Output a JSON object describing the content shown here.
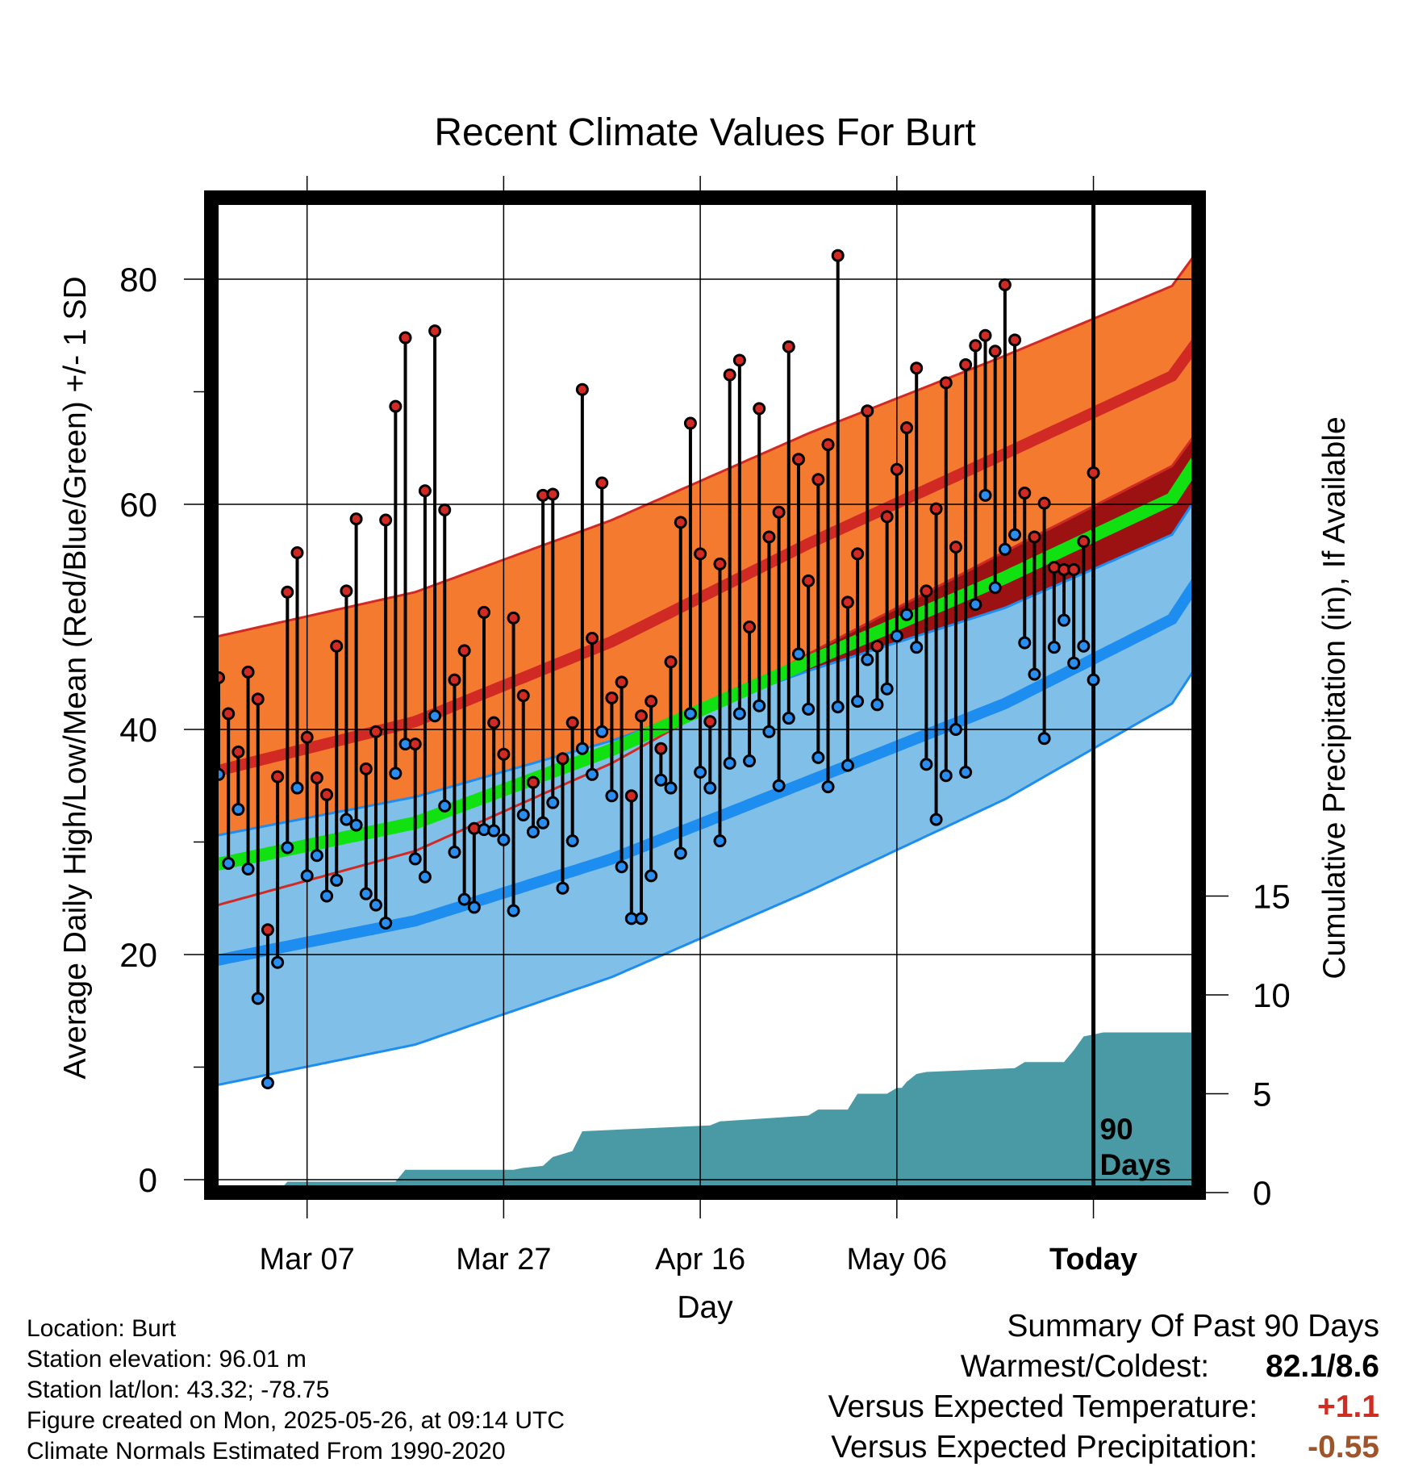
{
  "chart_data": {
    "type": "line",
    "title": "Recent Climate Values For Burt",
    "xlabel": "Day",
    "ylabel": "Average Daily High/Low/Mean (Red/Blue/Green) +/- 1 SD",
    "y2label": "Cumulative Precipitation (in), If Available",
    "x_tick_labels": [
      "Mar 07",
      "Mar 27",
      "Apr 16",
      "May 06",
      "Today"
    ],
    "y_ticks": [
      0,
      20,
      40,
      60,
      80
    ],
    "y2_ticks": [
      0,
      5,
      10,
      15
    ],
    "ylim": [
      -1,
      87
    ],
    "y2lim": [
      0,
      45
    ],
    "grid": true,
    "marker_label": "90 Days",
    "colors": {
      "high_band": "#f47a30",
      "high_line": "#d12a25",
      "low_band": "#80bfe8",
      "low_line": "#1e8df0",
      "mean_line": "#11e011",
      "precip": "#4a9aa5",
      "dark_red": "#9c1212"
    },
    "normals": {
      "x_day": [
        -3,
        20,
        40,
        60,
        80,
        97,
        100
      ],
      "high_mean": [
        35.7,
        40.7,
        47.8,
        56.5,
        64.5,
        71.4,
        75.0
      ],
      "high_sd": [
        12.0,
        11.5,
        10.8,
        9.8,
        8.7,
        8.0,
        8.0
      ],
      "low_mean": [
        19.0,
        23.0,
        28.5,
        35.4,
        42.3,
        49.8,
        53.8
      ],
      "low_sd": [
        11.1,
        11.0,
        10.5,
        9.8,
        8.5,
        7.5,
        7.5
      ],
      "mean_line": [
        27.5,
        31.7,
        38.2,
        46.0,
        53.5,
        60.5,
        64.5
      ]
    },
    "series": [
      {
        "name": "High",
        "values": [
          44.6,
          41.4,
          38.0,
          45.1,
          42.7,
          22.2,
          35.8,
          52.2,
          55.7,
          39.3,
          35.7,
          34.2,
          47.4,
          52.3,
          58.7,
          36.5,
          39.8,
          58.6,
          68.7,
          74.8,
          38.7,
          61.2,
          75.4,
          59.5,
          44.4,
          47.0,
          31.2,
          50.4,
          40.6,
          37.8,
          49.9,
          43.0,
          35.3,
          60.8,
          60.9,
          37.4,
          40.6,
          70.2,
          48.1,
          61.9,
          42.8,
          44.2,
          34.1,
          41.2,
          42.5,
          38.3,
          46.0,
          58.4,
          67.2,
          55.6,
          40.7,
          54.7,
          71.5,
          72.8,
          49.1,
          68.5,
          57.1,
          59.3,
          74.0,
          64.0,
          53.2,
          62.2,
          65.3,
          82.1,
          51.3,
          55.6,
          68.3,
          47.4,
          58.9,
          63.1,
          66.8,
          72.1,
          52.3,
          59.6,
          70.8,
          56.2,
          72.4,
          74.1,
          75.0,
          73.6,
          79.5,
          74.6,
          61.0,
          57.1,
          60.1,
          54.4,
          54.2,
          54.2,
          56.7,
          62.8
        ],
        "lows": [
          36.0,
          28.1,
          32.9,
          27.6,
          16.1,
          8.6,
          19.3,
          29.5,
          34.8,
          27.0,
          28.8,
          25.2,
          26.6,
          32.0,
          31.5,
          25.4,
          24.4,
          22.8,
          36.1,
          38.7,
          28.5,
          26.9,
          41.2,
          33.2,
          29.1,
          24.9,
          24.2,
          31.1,
          31.0,
          30.2,
          23.9,
          32.4,
          30.9,
          31.7,
          33.5,
          25.9,
          30.1,
          38.3,
          36.0,
          39.8,
          34.1,
          27.8,
          23.2,
          23.2,
          27.0,
          35.5,
          34.8,
          29.0,
          41.4,
          36.2,
          34.8,
          30.1,
          37.0,
          41.4,
          37.2,
          42.1,
          39.8,
          35.0,
          41.0,
          46.7,
          41.8,
          37.5,
          34.9,
          42.0,
          36.8,
          42.5,
          46.2,
          42.2,
          43.6,
          48.3,
          50.2,
          47.3,
          36.9,
          32.0,
          35.9,
          40.0,
          36.2,
          51.1,
          60.8,
          52.6,
          56.0,
          57.3,
          47.7,
          44.9,
          39.2,
          47.3,
          49.7,
          45.9,
          47.4,
          44.4
        ]
      },
      {
        "name": "Low",
        "values": [
          36.0,
          28.1,
          32.9,
          27.6,
          16.1,
          8.6,
          19.3,
          29.5,
          34.8,
          27.0,
          28.8,
          25.2,
          26.6,
          32.0,
          31.5,
          25.4,
          24.4,
          22.8,
          36.1,
          38.7,
          28.5,
          26.9,
          41.2,
          33.2,
          29.1,
          24.9,
          24.2,
          31.1,
          31.0,
          30.2,
          23.9,
          32.4,
          30.9,
          31.7,
          33.5,
          25.9,
          30.1,
          38.3,
          36.0,
          39.8,
          34.1,
          27.8,
          23.2,
          23.2,
          27.0,
          35.5,
          34.8,
          29.0,
          41.4,
          36.2,
          34.8,
          30.1,
          37.0,
          41.4,
          37.2,
          42.1,
          39.8,
          35.0,
          41.0,
          46.7,
          41.8,
          37.5,
          34.9,
          42.0,
          36.8,
          42.5,
          46.2,
          42.2,
          43.6,
          48.3,
          50.2,
          47.3,
          36.9,
          32.0,
          35.9,
          40.0,
          36.2,
          51.1,
          60.8,
          52.6,
          56.0,
          57.3,
          47.7,
          44.9,
          39.2,
          47.3,
          49.7,
          45.9,
          47.4,
          44.4
        ]
      },
      {
        "name": "Cumulative Precipitation",
        "x_day": [
          -1,
          6,
          7,
          18,
          19,
          30,
          31,
          33,
          34,
          35,
          36,
          37,
          50,
          51,
          60,
          61,
          64,
          65,
          68,
          69,
          69.5,
          70,
          71,
          72,
          81,
          82,
          86,
          87,
          88,
          89,
          90,
          100
        ],
        "values": [
          0,
          0,
          0.55,
          0.55,
          1.15,
          1.15,
          1.25,
          1.35,
          1.8,
          1.95,
          2.1,
          3.1,
          3.4,
          3.6,
          3.9,
          4.2,
          4.2,
          5.0,
          5.0,
          5.3,
          5.3,
          5.6,
          6.0,
          6.1,
          6.3,
          6.6,
          6.6,
          7.2,
          7.9,
          8.0,
          8.1,
          8.1
        ]
      }
    ]
  },
  "info": {
    "location": "Location: Burt",
    "elevation": "Station elevation: 96.01 m",
    "latlon": "Station lat/lon: 43.32; -78.75",
    "created": "Figure created on Mon, 2025-05-26, at 09:14 UTC",
    "normals": "Climate Normals Estimated From 1990-2020"
  },
  "summary": {
    "title": "Summary Of Past 90 Days",
    "warm_cold_label": "Warmest/Coldest:",
    "warm_cold_value": "82.1/8.6",
    "temp_label": "Versus Expected Temperature:",
    "temp_value": "+1.1",
    "temp_color": "#d02c22",
    "precip_label": "Versus Expected Precipitation:",
    "precip_value": "-0.55",
    "precip_color": "#a0542a"
  }
}
